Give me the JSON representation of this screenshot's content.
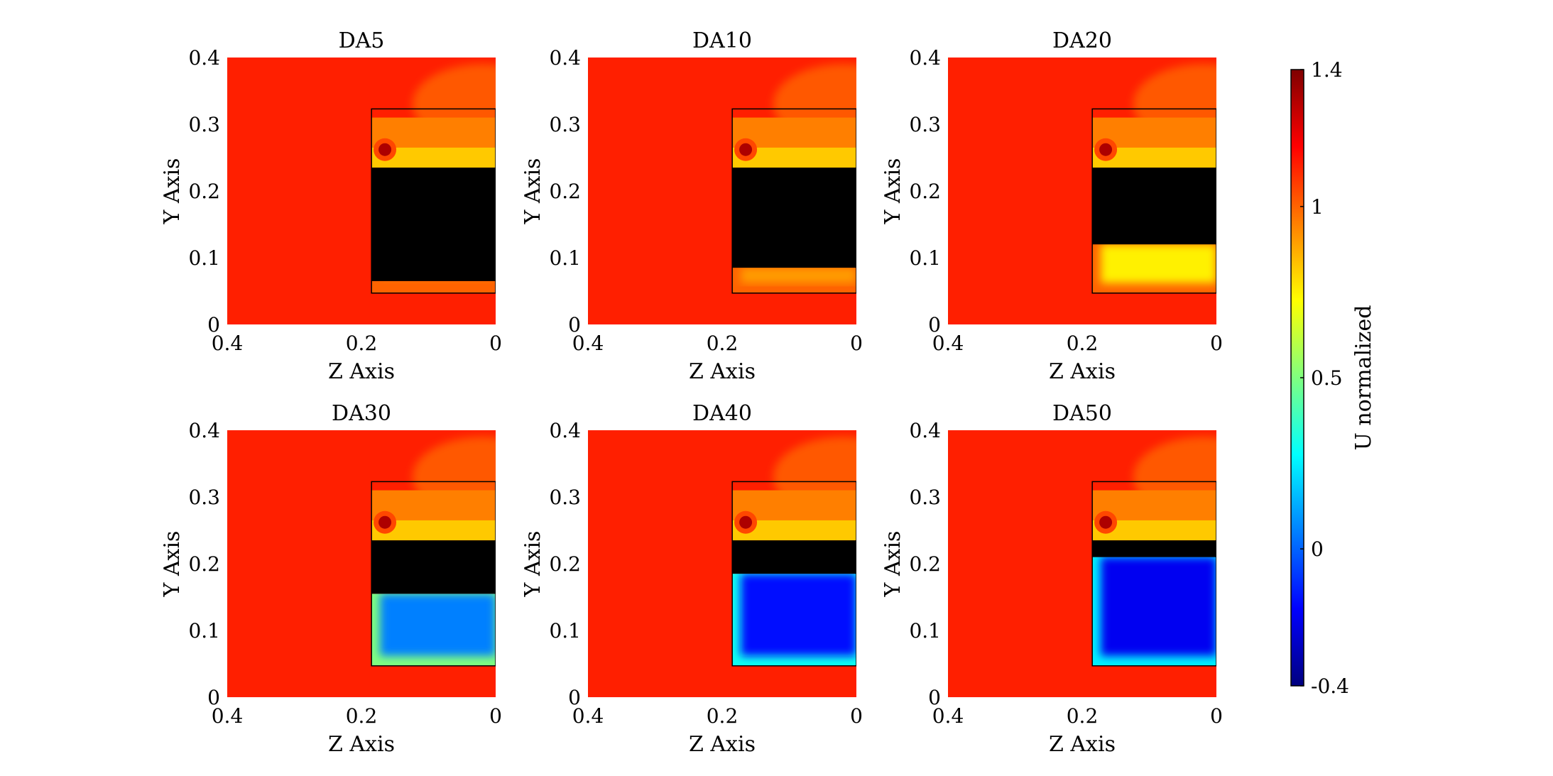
{
  "chart_data": [
    {
      "type": "heatmap",
      "title": "DA5",
      "xlabel": "Z Axis",
      "ylabel": "Y Axis",
      "xlim": [
        0.4,
        0
      ],
      "ylim": [
        0,
        0.4
      ],
      "xticks": [
        "0.4",
        "0.2",
        "0"
      ],
      "yticks": [
        "0",
        "0.1",
        "0.2",
        "0.3",
        "0.4"
      ],
      "x_reversed": true,
      "obstacle": {
        "z": [
          0,
          0.185
        ],
        "y": [
          0.065,
          0.235
        ]
      },
      "outline": {
        "z": [
          0,
          0.185
        ],
        "y": [
          0.047,
          0.323
        ]
      },
      "wake": {
        "z": [
          0,
          0.185
        ],
        "y": [
          0.047,
          0.065
        ],
        "level": 0.95
      }
    },
    {
      "type": "heatmap",
      "title": "DA10",
      "xlabel": "Z Axis",
      "ylabel": "Y Axis",
      "xlim": [
        0.4,
        0
      ],
      "ylim": [
        0,
        0.4
      ],
      "xticks": [
        "0.4",
        "0.2",
        "0"
      ],
      "yticks": [
        "0",
        "0.1",
        "0.2",
        "0.3",
        "0.4"
      ],
      "x_reversed": true,
      "obstacle": {
        "z": [
          0,
          0.185
        ],
        "y": [
          0.085,
          0.235
        ]
      },
      "outline": {
        "z": [
          0,
          0.185
        ],
        "y": [
          0.047,
          0.323
        ]
      },
      "wake": {
        "z": [
          0,
          0.185
        ],
        "y": [
          0.047,
          0.085
        ],
        "level": 0.9
      }
    },
    {
      "type": "heatmap",
      "title": "DA20",
      "xlabel": "Z Axis",
      "ylabel": "Y Axis",
      "xlim": [
        0.4,
        0
      ],
      "ylim": [
        0,
        0.4
      ],
      "xticks": [
        "0.4",
        "0.2",
        "0"
      ],
      "yticks": [
        "0",
        "0.1",
        "0.2",
        "0.3",
        "0.4"
      ],
      "x_reversed": true,
      "obstacle": {
        "z": [
          0,
          0.185
        ],
        "y": [
          0.12,
          0.235
        ]
      },
      "outline": {
        "z": [
          0,
          0.185
        ],
        "y": [
          0.047,
          0.323
        ]
      },
      "wake": {
        "z": [
          0,
          0.185
        ],
        "y": [
          0.047,
          0.12
        ],
        "level": 0.75
      }
    },
    {
      "type": "heatmap",
      "title": "DA30",
      "xlabel": "Z Axis",
      "ylabel": "Y Axis",
      "xlim": [
        0.4,
        0
      ],
      "ylim": [
        0,
        0.4
      ],
      "xticks": [
        "0.4",
        "0.2",
        "0"
      ],
      "yticks": [
        "0",
        "0.1",
        "0.2",
        "0.3",
        "0.4"
      ],
      "x_reversed": true,
      "obstacle": {
        "z": [
          0,
          0.185
        ],
        "y": [
          0.155,
          0.235
        ]
      },
      "outline": {
        "z": [
          0,
          0.185
        ],
        "y": [
          0.047,
          0.323
        ]
      },
      "wake": {
        "z": [
          0,
          0.185
        ],
        "y": [
          0.047,
          0.155
        ],
        "level": 0.05
      }
    },
    {
      "type": "heatmap",
      "title": "DA40",
      "xlabel": "Z Axis",
      "ylabel": "Y Axis",
      "xlim": [
        0.4,
        0
      ],
      "ylim": [
        0,
        0.4
      ],
      "xticks": [
        "0.4",
        "0.2",
        "0"
      ],
      "yticks": [
        "0",
        "0.1",
        "0.2",
        "0.3",
        "0.4"
      ],
      "x_reversed": true,
      "obstacle": {
        "z": [
          0,
          0.185
        ],
        "y": [
          0.185,
          0.235
        ]
      },
      "outline": {
        "z": [
          0,
          0.185
        ],
        "y": [
          0.047,
          0.323
        ]
      },
      "wake": {
        "z": [
          0,
          0.185
        ],
        "y": [
          0.047,
          0.185
        ],
        "level": -0.15
      }
    },
    {
      "type": "heatmap",
      "title": "DA50",
      "xlabel": "Z Axis",
      "ylabel": "Y Axis",
      "xlim": [
        0.4,
        0
      ],
      "ylim": [
        0,
        0.4
      ],
      "xticks": [
        "0.4",
        "0.2",
        "0"
      ],
      "yticks": [
        "0",
        "0.1",
        "0.2",
        "0.3",
        "0.4"
      ],
      "x_reversed": true,
      "obstacle": {
        "z": [
          0,
          0.185
        ],
        "y": [
          0.21,
          0.235
        ]
      },
      "outline": {
        "z": [
          0,
          0.185
        ],
        "y": [
          0.047,
          0.323
        ]
      },
      "wake": {
        "z": [
          0,
          0.185
        ],
        "y": [
          0.047,
          0.21
        ],
        "level": -0.2
      }
    }
  ],
  "colorbar": {
    "label": "U normalized",
    "range": [
      -0.4,
      1.4
    ],
    "ticks": [
      "1.4",
      "1",
      "0.5",
      "0",
      "-0.4"
    ],
    "colormap": "jet"
  }
}
